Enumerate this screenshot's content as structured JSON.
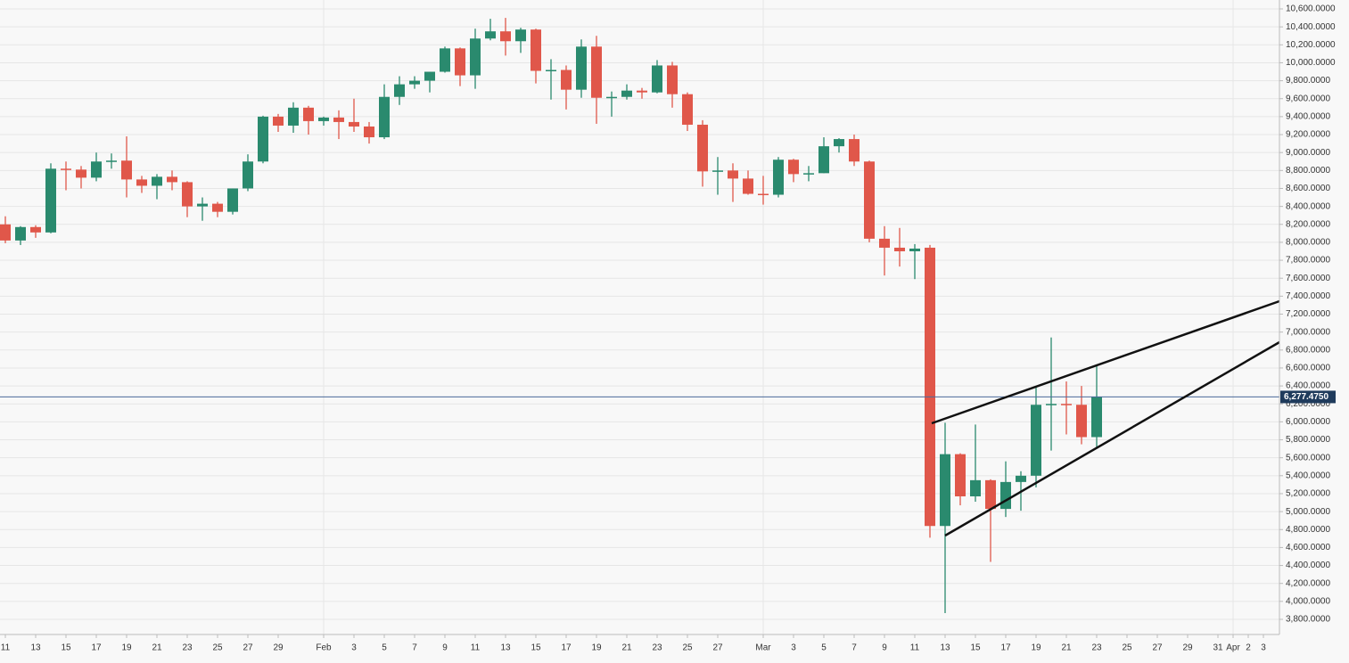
{
  "chart_data": {
    "type": "candlestick",
    "categories": [
      "11",
      null,
      "13",
      null,
      "15",
      null,
      "17",
      null,
      "19",
      null,
      "21",
      null,
      "23",
      null,
      "25",
      null,
      "27",
      null,
      "29",
      null,
      null,
      "Feb",
      null,
      "3",
      null,
      "5",
      null,
      "7",
      null,
      "9",
      null,
      "11",
      null,
      "13",
      null,
      "15",
      null,
      "17",
      null,
      "19",
      null,
      "21",
      null,
      "23",
      null,
      "25",
      null,
      "27",
      null,
      null,
      "Mar",
      null,
      "3",
      null,
      "5",
      null,
      "7",
      null,
      "9",
      null,
      "11",
      null,
      "13",
      null,
      "15",
      null,
      "17",
      null,
      "19",
      null,
      "21",
      null,
      "23",
      null,
      "25",
      null,
      "27",
      null,
      "29",
      null,
      "31",
      "Apr",
      "2",
      "3"
    ],
    "open": [
      8200,
      8020,
      8170,
      8110,
      8820,
      8810,
      8720,
      8900,
      8910,
      8700,
      8630,
      8730,
      8670,
      8400,
      8430,
      8340,
      8600,
      8900,
      9400,
      9300,
      9500,
      9350,
      9390,
      9340,
      9290,
      9170,
      9620,
      9760,
      9800,
      9900,
      10160,
      9860,
      10270,
      10350,
      10240,
      10370,
      9910,
      9920,
      9700,
      10180,
      9610,
      9620,
      9690,
      9670,
      9970,
      9650,
      9310,
      8790,
      8800,
      8710,
      8540,
      8530,
      8920,
      8760,
      8770,
      9070,
      9150,
      8900,
      8040,
      7940,
      7900,
      7940,
      4840,
      5640,
      5170,
      5350,
      5030,
      5330,
      5400,
      6190,
      6200,
      6190,
      5830,
      null,
      null,
      null,
      null,
      null,
      null,
      null,
      null,
      null,
      null,
      null
    ],
    "high": [
      8290,
      8180,
      8190,
      8880,
      8900,
      8850,
      9000,
      8990,
      9180,
      8740,
      8760,
      8800,
      8680,
      8500,
      8450,
      8600,
      8980,
      9410,
      9430,
      9560,
      9520,
      9400,
      9470,
      9600,
      9340,
      9760,
      9850,
      9850,
      9900,
      10180,
      10170,
      10380,
      10490,
      10500,
      10390,
      10380,
      10040,
      9970,
      10260,
      10300,
      9680,
      9760,
      9720,
      10030,
      10010,
      9670,
      9360,
      8950,
      8880,
      8800,
      8740,
      8950,
      8930,
      8850,
      9170,
      9160,
      9200,
      8910,
      8180,
      8160,
      7980,
      7970,
      5990,
      5650,
      5970,
      5360,
      5560,
      5450,
      6400,
      6940,
      6450,
      6400,
      6640,
      null,
      null,
      null,
      null,
      null,
      null,
      null,
      null,
      null,
      null,
      null
    ],
    "low": [
      7990,
      7970,
      8050,
      8100,
      8580,
      8600,
      8680,
      8820,
      8500,
      8550,
      8480,
      8580,
      8280,
      8240,
      8280,
      8310,
      8570,
      8880,
      9230,
      9220,
      9200,
      9300,
      9150,
      9230,
      9100,
      9150,
      9530,
      9710,
      9670,
      9890,
      9740,
      9710,
      10250,
      10080,
      10110,
      9770,
      9590,
      9480,
      9610,
      9320,
      9400,
      9590,
      9600,
      9660,
      9500,
      9240,
      8620,
      8530,
      8450,
      8530,
      8420,
      8500,
      8670,
      8680,
      8770,
      9000,
      8850,
      8000,
      7630,
      7730,
      7590,
      4710,
      3870,
      5070,
      5110,
      4440,
      4940,
      5010,
      5270,
      5680,
      5860,
      5750,
      5700,
      null,
      null,
      null,
      null,
      null,
      null,
      null,
      null,
      null,
      null,
      null
    ],
    "close": [
      8020,
      8170,
      8110,
      8820,
      8815,
      8720,
      8900,
      8910,
      8700,
      8630,
      8730,
      8670,
      8400,
      8430,
      8340,
      8600,
      8900,
      9400,
      9300,
      9500,
      9350,
      9390,
      9340,
      9290,
      9170,
      9620,
      9760,
      9800,
      9900,
      10160,
      9860,
      10270,
      10350,
      10240,
      10370,
      9910,
      9920,
      9700,
      10180,
      9610,
      9620,
      9690,
      9670,
      9970,
      9650,
      9310,
      8790,
      8800,
      8710,
      8540,
      8530,
      8920,
      8760,
      8770,
      9070,
      9150,
      8900,
      8040,
      7940,
      7900,
      7930,
      4840,
      5640,
      5170,
      5350,
      5030,
      5330,
      5400,
      6190,
      6200,
      6190,
      5830,
      6280,
      null,
      null,
      null,
      null,
      null,
      null,
      null,
      null,
      null,
      null,
      null
    ],
    "up_color": "#2a8a6e",
    "down_color": "#e0574a",
    "ylim": [
      3800,
      10600
    ],
    "yticks": [
      {
        "value": 3800,
        "label": "3,800.0000"
      },
      {
        "value": 4000,
        "label": "4,000.0000"
      },
      {
        "value": 4200,
        "label": "4,200.0000"
      },
      {
        "value": 4400,
        "label": "4,400.0000"
      },
      {
        "value": 4600,
        "label": "4,600.0000"
      },
      {
        "value": 4800,
        "label": "4,800.0000"
      },
      {
        "value": 5000,
        "label": "5,000.0000"
      },
      {
        "value": 5200,
        "label": "5,200.0000"
      },
      {
        "value": 5400,
        "label": "5,400.0000"
      },
      {
        "value": 5600,
        "label": "5,600.0000"
      },
      {
        "value": 5800,
        "label": "5,800.0000"
      },
      {
        "value": 6000,
        "label": "6,000.0000"
      },
      {
        "value": 6200,
        "label": "6,200.0000"
      },
      {
        "value": 6400,
        "label": "6,400.0000"
      },
      {
        "value": 6600,
        "label": "6,600.0000"
      },
      {
        "value": 6800,
        "label": "6,800.0000"
      },
      {
        "value": 7000,
        "label": "7,000.0000"
      },
      {
        "value": 7200,
        "label": "7,200.0000"
      },
      {
        "value": 7400,
        "label": "7,400.0000"
      },
      {
        "value": 7600,
        "label": "7,600.0000"
      },
      {
        "value": 7800,
        "label": "7,800.0000"
      },
      {
        "value": 8000,
        "label": "8,000.0000"
      },
      {
        "value": 8200,
        "label": "8,200.0000"
      },
      {
        "value": 8400,
        "label": "8,400.0000"
      },
      {
        "value": 8600,
        "label": "8,600.0000"
      },
      {
        "value": 8800,
        "label": "8,800.0000"
      },
      {
        "value": 9000,
        "label": "9,000.0000"
      },
      {
        "value": 9200,
        "label": "9,200.0000"
      },
      {
        "value": 9400,
        "label": "9,400.0000"
      },
      {
        "value": 9600,
        "label": "9,600.0000"
      },
      {
        "value": 9800,
        "label": "9,800.0000"
      },
      {
        "value": 10000,
        "label": "10,000.0000"
      },
      {
        "value": 10200,
        "label": "10,200.0000"
      },
      {
        "value": 10400,
        "label": "10,400.0000"
      },
      {
        "value": 10600,
        "label": "10,600.0000"
      }
    ],
    "last_price": {
      "value": 6277.475,
      "label": "6,277.4750"
    },
    "grid": true
  }
}
